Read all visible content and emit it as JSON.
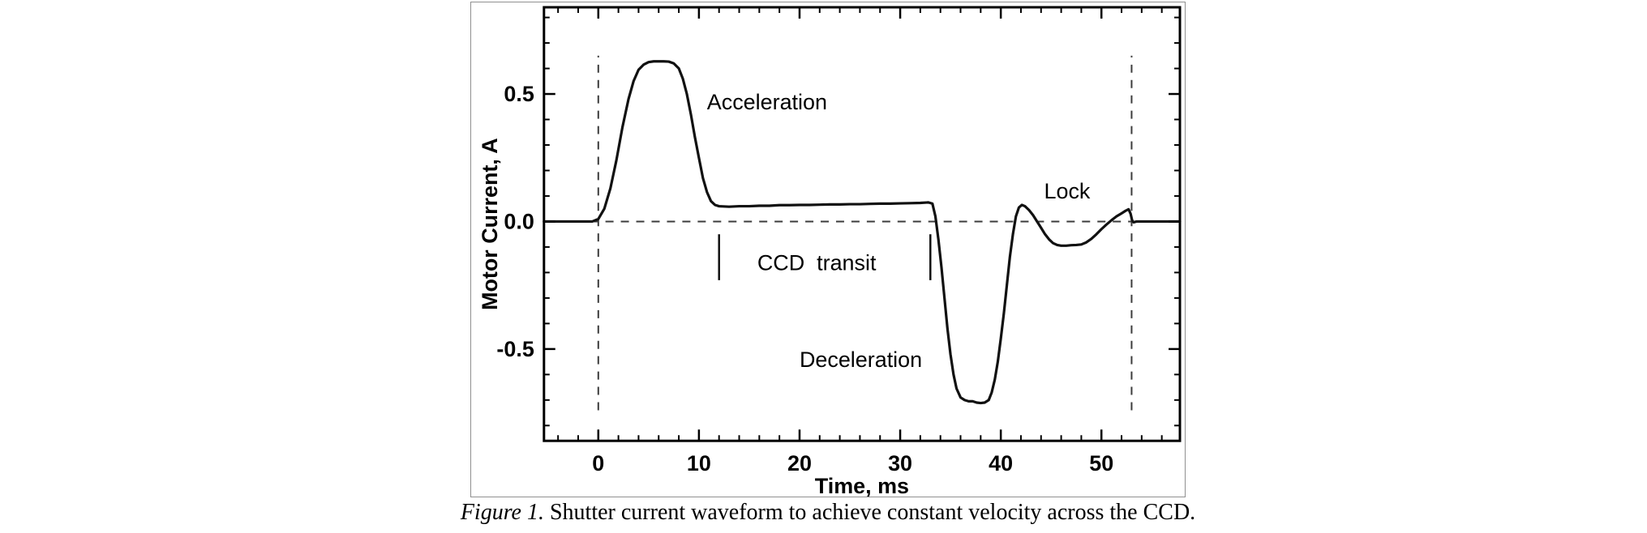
{
  "caption": {
    "prefix": "Figure 1.",
    "rest": " Shutter current waveform to achieve constant velocity across the CCD."
  },
  "chart_data": {
    "type": "line",
    "title": "",
    "xlabel": "Time, ms",
    "ylabel": "Motor Current, A",
    "xlim": [
      -5.4,
      57.8
    ],
    "ylim": [
      -0.86,
      0.84
    ],
    "grid": false,
    "legend": "none",
    "colors": {
      "line": "#111111",
      "dashed": "#3c3c3c",
      "frame": "#000000"
    },
    "xticks": {
      "major": [
        0,
        10,
        20,
        30,
        40,
        50
      ],
      "labels": [
        "0",
        "10",
        "20",
        "30",
        "40",
        "50"
      ],
      "minor_step": 2
    },
    "yticks": {
      "major": [
        0.5,
        0.0,
        -0.5
      ],
      "labels": [
        "0.5",
        "0.0",
        "-0.5"
      ],
      "minor_step": 0.1
    },
    "reference_lines": {
      "zero_line": {
        "y": 0,
        "x1": -5.4,
        "x2": 57.8,
        "style": "dashed"
      },
      "start_line": {
        "x": 0,
        "y1": -0.74,
        "y2": 0.65,
        "style": "dashed"
      },
      "end_line": {
        "x": 53,
        "y1": -0.74,
        "y2": 0.65,
        "style": "dashed"
      }
    },
    "transit_markers": [
      {
        "x": 12,
        "y1": -0.05,
        "y2": -0.23
      },
      {
        "x": 33,
        "y1": -0.05,
        "y2": -0.23
      }
    ],
    "annotations": [
      {
        "text": "Acceleration",
        "x": 10.8,
        "y": 0.44,
        "anchor": "start"
      },
      {
        "text": "CCD  transit",
        "x": 15.8,
        "y": -0.19,
        "anchor": "start"
      },
      {
        "text": "Deceleration",
        "x": 20.0,
        "y": -0.57,
        "anchor": "start"
      },
      {
        "text": "Lock",
        "x": 44.3,
        "y": 0.09,
        "anchor": "start"
      }
    ],
    "series": [
      {
        "name": "Motor current",
        "points": [
          [
            -5.4,
            0
          ],
          [
            -2,
            0
          ],
          [
            -0.6,
            0
          ],
          [
            0,
            0.01
          ],
          [
            0.6,
            0.05
          ],
          [
            1.2,
            0.13
          ],
          [
            1.8,
            0.24
          ],
          [
            2.4,
            0.37
          ],
          [
            3,
            0.48
          ],
          [
            3.5,
            0.55
          ],
          [
            4,
            0.595
          ],
          [
            4.5,
            0.615
          ],
          [
            5,
            0.625
          ],
          [
            5.5,
            0.628
          ],
          [
            6,
            0.628
          ],
          [
            6.5,
            0.628
          ],
          [
            7,
            0.627
          ],
          [
            7.5,
            0.62
          ],
          [
            8,
            0.6
          ],
          [
            8.4,
            0.56
          ],
          [
            8.8,
            0.5
          ],
          [
            9.2,
            0.42
          ],
          [
            9.6,
            0.33
          ],
          [
            10,
            0.25
          ],
          [
            10.4,
            0.17
          ],
          [
            10.8,
            0.115
          ],
          [
            11.2,
            0.08
          ],
          [
            11.6,
            0.065
          ],
          [
            12,
            0.06
          ],
          [
            13,
            0.058
          ],
          [
            14,
            0.06
          ],
          [
            15,
            0.06
          ],
          [
            16,
            0.062
          ],
          [
            17,
            0.062
          ],
          [
            18,
            0.064
          ],
          [
            19,
            0.064
          ],
          [
            20,
            0.065
          ],
          [
            21,
            0.065
          ],
          [
            22,
            0.066
          ],
          [
            23,
            0.067
          ],
          [
            24,
            0.067
          ],
          [
            25,
            0.068
          ],
          [
            26,
            0.068
          ],
          [
            27,
            0.069
          ],
          [
            28,
            0.07
          ],
          [
            29,
            0.07
          ],
          [
            30,
            0.071
          ],
          [
            31,
            0.072
          ],
          [
            32,
            0.073
          ],
          [
            32.8,
            0.075
          ],
          [
            33.2,
            0.07
          ],
          [
            33.5,
            0.02
          ],
          [
            33.8,
            -0.07
          ],
          [
            34.1,
            -0.18
          ],
          [
            34.4,
            -0.3
          ],
          [
            34.7,
            -0.42
          ],
          [
            35,
            -0.52
          ],
          [
            35.3,
            -0.6
          ],
          [
            35.6,
            -0.655
          ],
          [
            36,
            -0.69
          ],
          [
            36.4,
            -0.7
          ],
          [
            36.8,
            -0.705
          ],
          [
            37.2,
            -0.705
          ],
          [
            37.6,
            -0.71
          ],
          [
            38,
            -0.712
          ],
          [
            38.4,
            -0.71
          ],
          [
            38.8,
            -0.7
          ],
          [
            39.1,
            -0.67
          ],
          [
            39.4,
            -0.62
          ],
          [
            39.7,
            -0.55
          ],
          [
            40,
            -0.46
          ],
          [
            40.3,
            -0.36
          ],
          [
            40.6,
            -0.25
          ],
          [
            40.9,
            -0.14
          ],
          [
            41.2,
            -0.05
          ],
          [
            41.5,
            0.02
          ],
          [
            41.8,
            0.055
          ],
          [
            42.1,
            0.065
          ],
          [
            42.4,
            0.06
          ],
          [
            42.8,
            0.045
          ],
          [
            43.2,
            0.025
          ],
          [
            43.6,
            0
          ],
          [
            44,
            -0.025
          ],
          [
            44.4,
            -0.05
          ],
          [
            44.8,
            -0.07
          ],
          [
            45.2,
            -0.085
          ],
          [
            45.6,
            -0.092
          ],
          [
            46,
            -0.095
          ],
          [
            46.5,
            -0.095
          ],
          [
            47,
            -0.093
          ],
          [
            47.5,
            -0.092
          ],
          [
            48,
            -0.09
          ],
          [
            48.5,
            -0.082
          ],
          [
            49,
            -0.068
          ],
          [
            49.5,
            -0.05
          ],
          [
            50,
            -0.03
          ],
          [
            50.5,
            -0.012
          ],
          [
            51,
            0.005
          ],
          [
            51.5,
            0.02
          ],
          [
            52,
            0.032
          ],
          [
            52.4,
            0.042
          ],
          [
            52.7,
            0.048
          ],
          [
            52.9,
            0.03
          ],
          [
            53.05,
            0.005
          ],
          [
            53.2,
            -0.003
          ],
          [
            53.5,
            0
          ],
          [
            54,
            0
          ],
          [
            55,
            0
          ],
          [
            56,
            0
          ],
          [
            57.8,
            0
          ]
        ]
      }
    ]
  }
}
